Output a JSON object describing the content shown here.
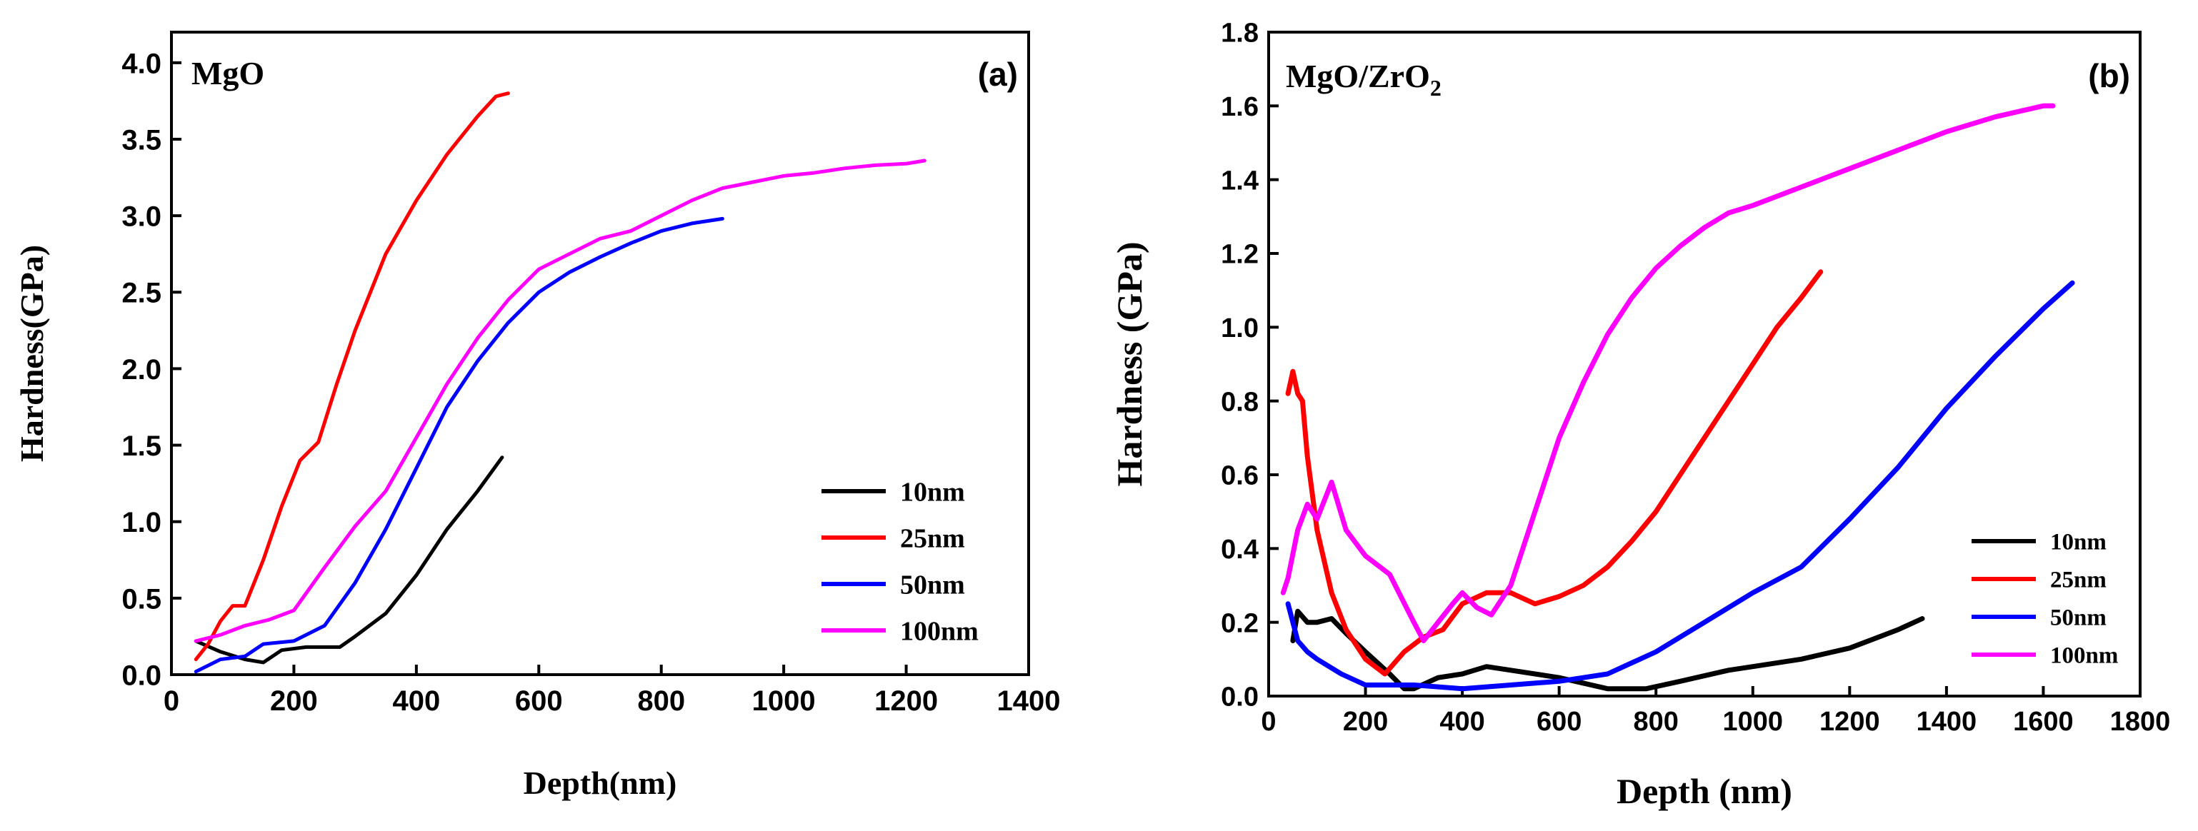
{
  "chart_data": [
    {
      "type": "line",
      "panel": "(a)",
      "title": "MgO",
      "xlabel": "Depth(nm)",
      "ylabel": "Hardness(GPa)",
      "xlim": [
        0,
        1400
      ],
      "ylim": [
        0,
        4.2
      ],
      "xticks": [
        0,
        200,
        400,
        600,
        800,
        1000,
        1200,
        1400
      ],
      "yticks": [
        0.0,
        0.5,
        1.0,
        1.5,
        2.0,
        2.5,
        3.0,
        3.5,
        4.0
      ],
      "xtick_labels": [
        "0",
        "200",
        "400",
        "600",
        "800",
        "1000",
        "1200",
        "1400"
      ],
      "ytick_labels": [
        "0.0",
        "0.5",
        "1.0",
        "1.5",
        "2.0",
        "2.5",
        "3.0",
        "3.5",
        "4.0"
      ],
      "legend_position": "lower-right",
      "series": [
        {
          "name": "10nm",
          "color": "#000000",
          "x": [
            40,
            80,
            120,
            150,
            180,
            220,
            250,
            275,
            300,
            350,
            400,
            450,
            500,
            540
          ],
          "y": [
            0.22,
            0.15,
            0.1,
            0.08,
            0.16,
            0.18,
            0.18,
            0.18,
            0.25,
            0.4,
            0.65,
            0.95,
            1.2,
            1.42
          ]
        },
        {
          "name": "25nm",
          "color": "#ff0000",
          "x": [
            40,
            60,
            80,
            100,
            120,
            150,
            180,
            210,
            240,
            270,
            300,
            350,
            400,
            450,
            500,
            530,
            550
          ],
          "y": [
            0.1,
            0.2,
            0.35,
            0.45,
            0.45,
            0.75,
            1.1,
            1.4,
            1.52,
            1.9,
            2.25,
            2.75,
            3.1,
            3.4,
            3.65,
            3.78,
            3.8
          ]
        },
        {
          "name": "50nm",
          "color": "#0000ff",
          "x": [
            40,
            80,
            120,
            150,
            200,
            250,
            300,
            350,
            400,
            450,
            500,
            550,
            600,
            650,
            700,
            750,
            800,
            850,
            900
          ],
          "y": [
            0.02,
            0.1,
            0.12,
            0.2,
            0.22,
            0.32,
            0.6,
            0.95,
            1.35,
            1.75,
            2.05,
            2.3,
            2.5,
            2.63,
            2.73,
            2.82,
            2.9,
            2.95,
            2.98
          ]
        },
        {
          "name": "100nm",
          "color": "#ff00ff",
          "x": [
            40,
            80,
            120,
            160,
            200,
            250,
            300,
            350,
            400,
            450,
            500,
            550,
            600,
            650,
            700,
            750,
            800,
            850,
            900,
            950,
            1000,
            1050,
            1100,
            1150,
            1200,
            1230
          ],
          "y": [
            0.22,
            0.26,
            0.32,
            0.36,
            0.42,
            0.7,
            0.97,
            1.2,
            1.55,
            1.9,
            2.2,
            2.45,
            2.65,
            2.75,
            2.85,
            2.9,
            3.0,
            3.1,
            3.18,
            3.22,
            3.26,
            3.28,
            3.31,
            3.33,
            3.34,
            3.36
          ]
        }
      ]
    },
    {
      "type": "line",
      "panel": "(b)",
      "title": "MgO/ZrO",
      "title_subscript": "2",
      "xlabel": "Depth (nm)",
      "ylabel": "Hardness (GPa)",
      "xlim": [
        0,
        1800
      ],
      "ylim": [
        0,
        1.8
      ],
      "xticks": [
        0,
        200,
        400,
        600,
        800,
        1000,
        1200,
        1400,
        1600,
        1800
      ],
      "yticks": [
        0.0,
        0.2,
        0.4,
        0.6,
        0.8,
        1.0,
        1.2,
        1.4,
        1.6,
        1.8
      ],
      "xtick_labels": [
        "0",
        "200",
        "400",
        "600",
        "800",
        "1000",
        "1200",
        "1400",
        "1600",
        "1800"
      ],
      "ytick_labels": [
        "0.0",
        "0.2",
        "0.4",
        "0.6",
        "0.8",
        "1.0",
        "1.2",
        "1.4",
        "1.6",
        "1.8"
      ],
      "legend_position": "lower-right",
      "series": [
        {
          "name": "10nm",
          "color": "#000000",
          "x": [
            50,
            60,
            80,
            100,
            130,
            160,
            200,
            250,
            280,
            300,
            350,
            400,
            450,
            500,
            600,
            700,
            780,
            850,
            950,
            1000,
            1100,
            1200,
            1300,
            1350
          ],
          "y": [
            0.15,
            0.23,
            0.2,
            0.2,
            0.21,
            0.17,
            0.12,
            0.06,
            0.02,
            0.02,
            0.05,
            0.06,
            0.08,
            0.07,
            0.05,
            0.02,
            0.02,
            0.04,
            0.07,
            0.08,
            0.1,
            0.13,
            0.18,
            0.21
          ]
        },
        {
          "name": "25nm",
          "color": "#ff0000",
          "x": [
            40,
            50,
            60,
            70,
            80,
            100,
            130,
            160,
            200,
            240,
            280,
            320,
            360,
            400,
            450,
            500,
            550,
            600,
            650,
            700,
            750,
            800,
            850,
            900,
            950,
            1000,
            1050,
            1100,
            1140
          ],
          "y": [
            0.82,
            0.88,
            0.82,
            0.8,
            0.65,
            0.45,
            0.28,
            0.18,
            0.1,
            0.06,
            0.12,
            0.16,
            0.18,
            0.25,
            0.28,
            0.28,
            0.25,
            0.27,
            0.3,
            0.35,
            0.42,
            0.5,
            0.6,
            0.7,
            0.8,
            0.9,
            1.0,
            1.08,
            1.15
          ]
        },
        {
          "name": "50nm",
          "color": "#0000ff",
          "x": [
            40,
            50,
            60,
            80,
            100,
            150,
            200,
            300,
            400,
            500,
            600,
            700,
            800,
            900,
            1000,
            1100,
            1200,
            1300,
            1400,
            1500,
            1600,
            1660
          ],
          "y": [
            0.25,
            0.2,
            0.15,
            0.12,
            0.1,
            0.06,
            0.03,
            0.03,
            0.02,
            0.03,
            0.04,
            0.06,
            0.12,
            0.2,
            0.28,
            0.35,
            0.48,
            0.62,
            0.78,
            0.92,
            1.05,
            1.12
          ]
        },
        {
          "name": "100nm",
          "color": "#ff00ff",
          "x": [
            30,
            40,
            60,
            80,
            100,
            130,
            160,
            200,
            250,
            300,
            320,
            350,
            380,
            400,
            430,
            460,
            500,
            550,
            600,
            650,
            700,
            750,
            800,
            850,
            900,
            950,
            1000,
            1100,
            1200,
            1300,
            1400,
            1500,
            1600,
            1620
          ],
          "y": [
            0.28,
            0.32,
            0.45,
            0.52,
            0.48,
            0.58,
            0.45,
            0.38,
            0.33,
            0.2,
            0.15,
            0.2,
            0.25,
            0.28,
            0.24,
            0.22,
            0.3,
            0.5,
            0.7,
            0.85,
            0.98,
            1.08,
            1.16,
            1.22,
            1.27,
            1.31,
            1.33,
            1.38,
            1.43,
            1.48,
            1.53,
            1.57,
            1.6,
            1.6
          ]
        }
      ]
    }
  ]
}
